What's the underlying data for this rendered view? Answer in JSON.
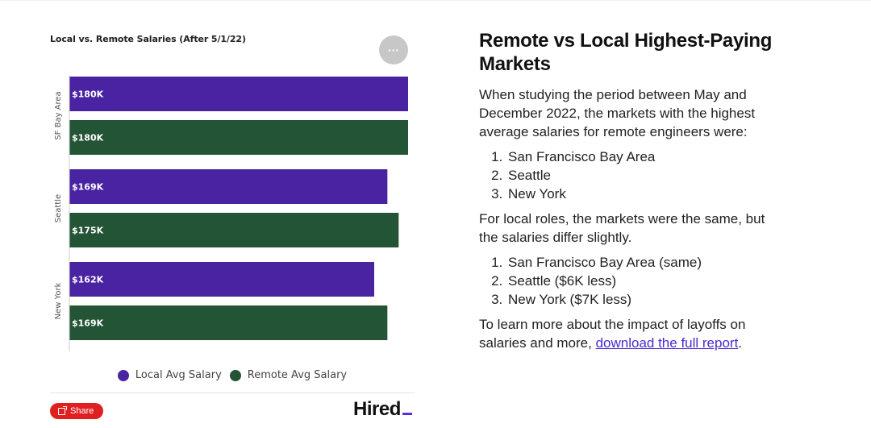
{
  "chart_card": {
    "more_label": "···",
    "share_label": "Share",
    "logo_text": "Hired"
  },
  "article": {
    "title": "Remote vs Local Highest-Paying Markets",
    "para1": "When studying the period between May and December 2022, the markets with the highest average salaries for remote engineers were:",
    "list1": [
      "San Francisco Bay Area",
      "Seattle",
      "New York"
    ],
    "para2": "For local roles, the markets were the same, but the salaries differ slightly.",
    "list2": [
      "San Francisco Bay Area (same)",
      "Seattle ($6K less)",
      "New York ($7K less)"
    ],
    "para3_prefix": "To learn more about the impact of layoffs on salaries and more, ",
    "link_text": "download the full report",
    "para3_suffix": "."
  },
  "chart_data": {
    "type": "bar",
    "orientation": "horizontal",
    "title": "Local vs. Remote Salaries (After 5/1/22)",
    "categories": [
      "SF Bay Area",
      "Seattle",
      "New York"
    ],
    "series": [
      {
        "name": "Local Avg Salary",
        "color": "#4a23a3",
        "values": [
          180,
          169,
          162
        ],
        "labels": [
          "$180K",
          "$169K",
          "$162K"
        ]
      },
      {
        "name": "Remote Avg Salary",
        "color": "#245436",
        "values": [
          180,
          175,
          169
        ],
        "labels": [
          "$180K",
          "$175K",
          "$169K"
        ]
      }
    ],
    "xlim": [
      0,
      180
    ],
    "grid": false,
    "legend": "bottom-center"
  }
}
